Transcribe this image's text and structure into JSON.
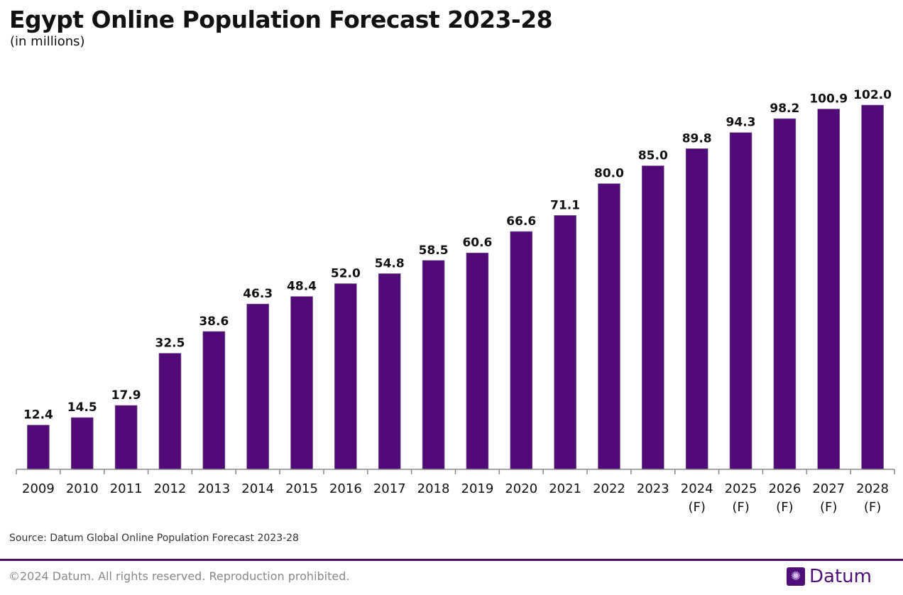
{
  "title": "Egypt Online Population Forecast 2023-28",
  "subtitle": "(in millions)",
  "source": "Source: Datum Global Online Population Forecast 2023-28",
  "copyright": "©2024 Datum. All rights reserved. Reproduction prohibited.",
  "logo": {
    "text": "Datum",
    "icon": "globe-network-icon"
  },
  "colors": {
    "bar": "#510a78",
    "rule": "#4b0d73"
  },
  "chart_data": {
    "type": "bar",
    "title": "Egypt Online Population Forecast 2023-28",
    "subtitle": "(in millions)",
    "categories": [
      "2009",
      "2010",
      "2011",
      "2012",
      "2013",
      "2014",
      "2015",
      "2016",
      "2017",
      "2018",
      "2019",
      "2020",
      "2021",
      "2022",
      "2023",
      "2024\n(F)",
      "2025\n(F)",
      "2026\n(F)",
      "2027\n(F)",
      "2028\n(F)"
    ],
    "values": [
      12.4,
      14.5,
      17.9,
      32.5,
      38.6,
      46.3,
      48.4,
      52.0,
      54.8,
      58.5,
      60.6,
      66.6,
      71.1,
      80.0,
      85.0,
      89.8,
      94.3,
      98.2,
      100.9,
      102.0
    ],
    "labels": [
      "12.4",
      "14.5",
      "17.9",
      "32.5",
      "38.6",
      "46.3",
      "48.4",
      "52.0",
      "54.8",
      "58.5",
      "60.6",
      "66.6",
      "71.1",
      "80.0",
      "85.0",
      "89.8",
      "94.3",
      "98.2",
      "100.9",
      "102.0"
    ],
    "xlabel": "",
    "ylabel": "",
    "ylim": [
      0,
      102
    ],
    "grid": false,
    "legend": "none"
  }
}
